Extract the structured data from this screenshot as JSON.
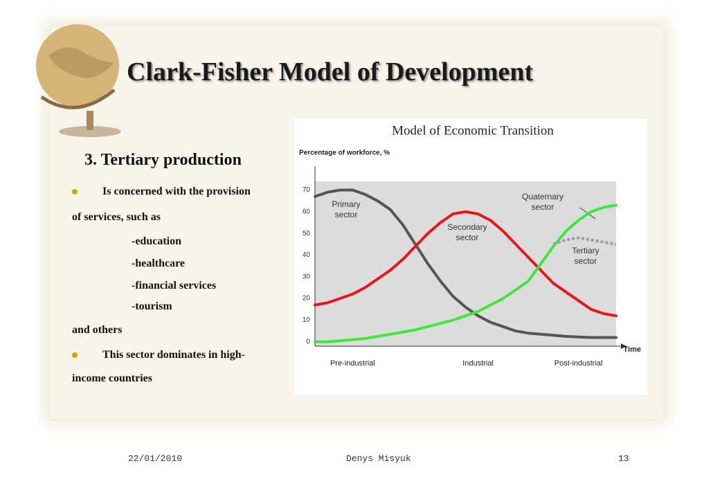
{
  "slide": {
    "title": "Clark-Fisher Model of Development",
    "heading": "3. Tertiary production",
    "lines": [
      "Is concerned with the provision",
      "of services, such as",
      "-education",
      "-healthcare",
      "-financial services",
      "-tourism",
      "and others",
      "This sector dominates in high-",
      "income countries"
    ]
  },
  "footer": {
    "date": "22/01/2010",
    "author": "Denys Misyuk",
    "page": "13"
  },
  "chart_data": {
    "type": "line",
    "title": "Model of Economic Transition",
    "y_label": "Percentage of workforce, %",
    "x_label": "Time",
    "categories": [
      null,
      null,
      null,
      "Pre-industrial",
      null,
      null,
      null,
      null,
      null,
      null,
      null,
      null,
      null,
      "Industrial",
      null,
      null,
      null,
      null,
      null,
      null,
      null,
      "Post-industrial",
      null,
      null,
      null
    ],
    "ylim": [
      -2,
      74
    ],
    "yticks": [
      0,
      10,
      20,
      30,
      40,
      50,
      60,
      70
    ],
    "series": [
      {
        "name": "Primary sector",
        "color": "#555555",
        "values": [
          67,
          69,
          70,
          70,
          68,
          65,
          61,
          54,
          45,
          36,
          28,
          21,
          16,
          12,
          9,
          7,
          5,
          4,
          3.5,
          3,
          2.5,
          2.2,
          2,
          2,
          2
        ]
      },
      {
        "name": "Secondary sector",
        "color": "#e8161a",
        "values": [
          17,
          18,
          20,
          22,
          25,
          29,
          33,
          38,
          44,
          50,
          55,
          59,
          60,
          59,
          56,
          51,
          45,
          39,
          33,
          27,
          23,
          19,
          15,
          13,
          12
        ]
      },
      {
        "name": "Quaternary sector",
        "color": "#3ee83a",
        "values": [
          0,
          0,
          0.5,
          1,
          1.5,
          2.5,
          3.5,
          4.5,
          5.5,
          7,
          8.5,
          10,
          12,
          14,
          17,
          20,
          24,
          28,
          36,
          44,
          51,
          56,
          60,
          62,
          63
        ]
      },
      {
        "name": "Tertiary sector",
        "color": "#999999",
        "dashed": true,
        "values": [
          null,
          null,
          null,
          null,
          null,
          null,
          null,
          null,
          null,
          null,
          null,
          null,
          null,
          null,
          null,
          null,
          null,
          null,
          null,
          45,
          47,
          48,
          47,
          46,
          45
        ]
      }
    ]
  }
}
